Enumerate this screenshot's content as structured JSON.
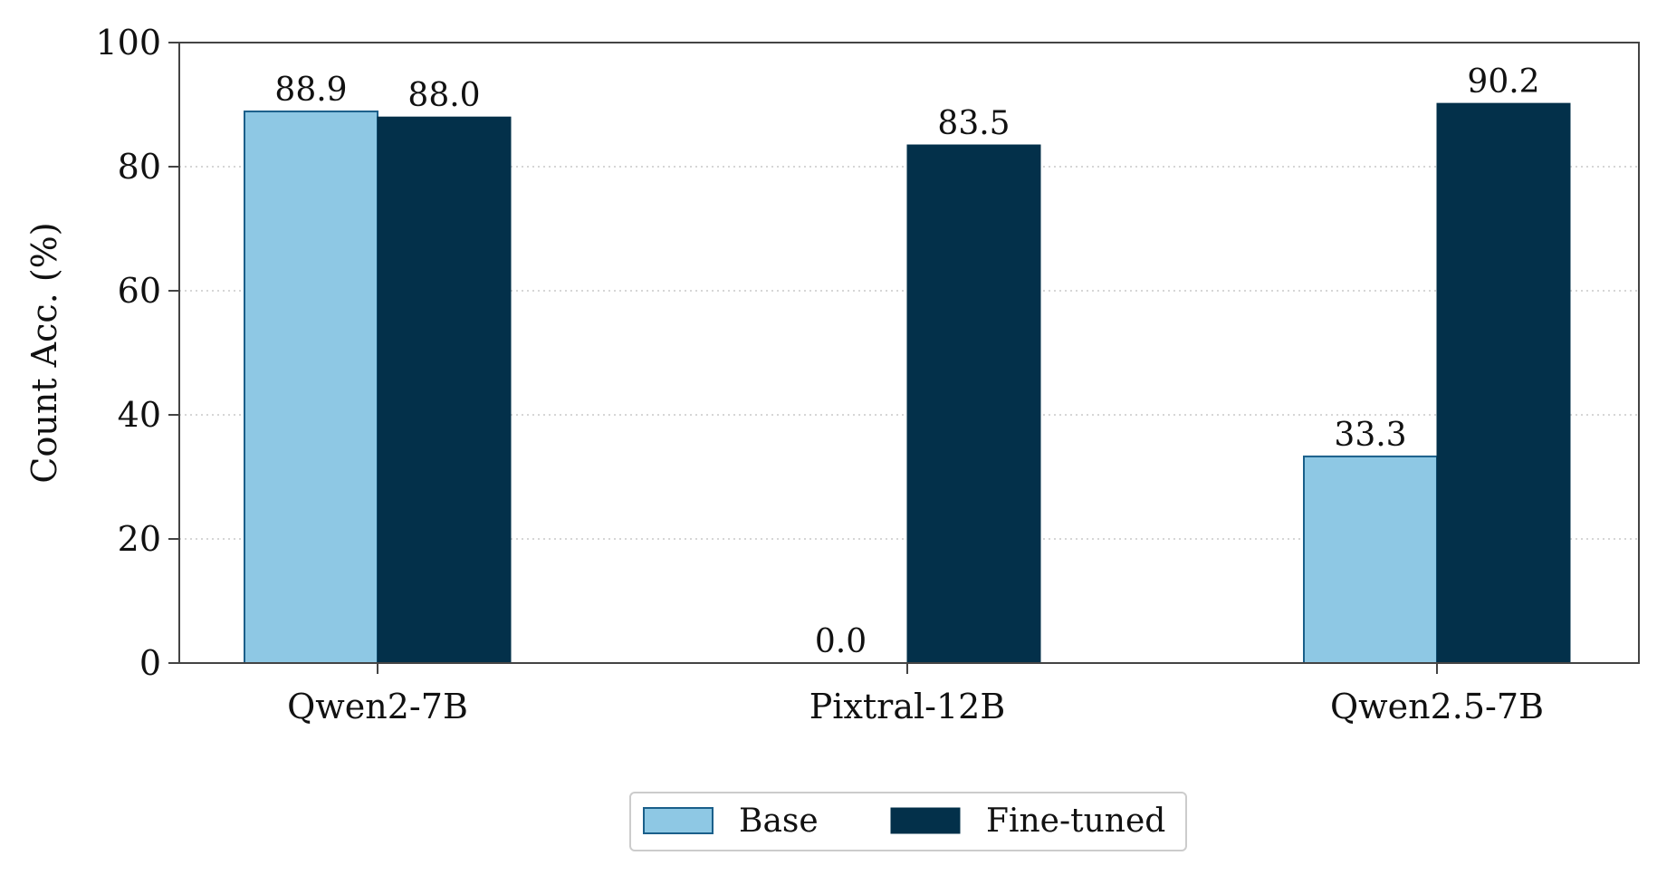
{
  "chart_data": {
    "type": "bar",
    "categories": [
      "Qwen2-7B",
      "Pixtral-12B",
      "Qwen2.5-7B"
    ],
    "series": [
      {
        "name": "Base",
        "values": [
          88.9,
          0.0,
          33.3
        ],
        "labels": [
          "88.9",
          "0.0",
          "33.3"
        ]
      },
      {
        "name": "Fine-tuned",
        "values": [
          88.0,
          83.5,
          90.2
        ],
        "labels": [
          "88.0",
          "83.5",
          "90.2"
        ]
      }
    ],
    "title": "",
    "xlabel": "",
    "ylabel": "Count Acc. (%)",
    "ylim": [
      0,
      100
    ],
    "yticks": [
      "0",
      "20",
      "40",
      "60",
      "80",
      "100"
    ],
    "grid": "horizontal dotted",
    "legend_position": "bottom-center"
  },
  "colors": {
    "base": "#8ec8e4",
    "base_edge": "#1a5f8a",
    "finetuned": "#03304a",
    "axis": "#444444",
    "grid": "#c8c8c8"
  }
}
